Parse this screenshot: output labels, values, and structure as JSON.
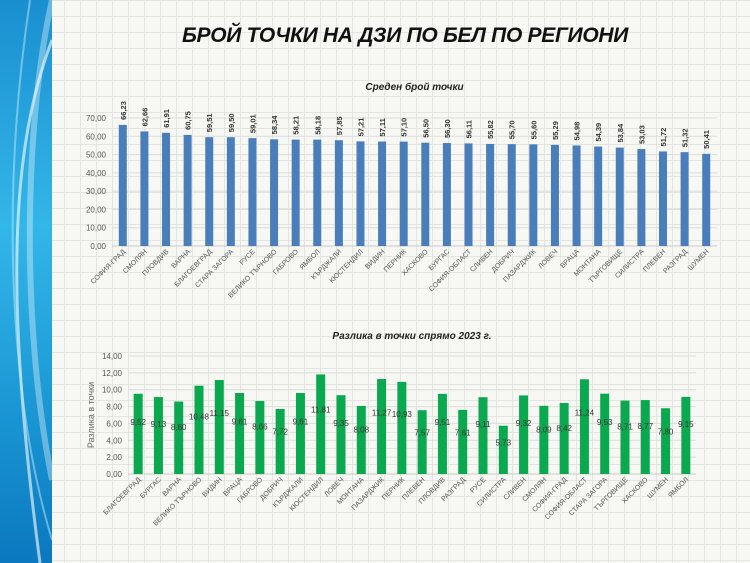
{
  "slide": {
    "title": "БРОЙ ТОЧКИ НА ДЗИ ПО БЕЛ ПО РЕГИОНИ"
  },
  "chart_data": [
    {
      "type": "bar",
      "title": "Среден брой точки",
      "ylabel": "",
      "ylim": [
        0,
        70
      ],
      "yticks": [
        "0,00",
        "10,00",
        "20,00",
        "30,00",
        "40,00",
        "50,00",
        "60,00",
        "70,00"
      ],
      "grid": true,
      "color": "#4a7ebb",
      "categories": [
        "СОФИЯ-ГРАД",
        "СМОЛЯН",
        "ПЛОВДИВ",
        "ВАРНА",
        "БЛАГОЕВГРАД",
        "СТАРА ЗАГОРА",
        "РУСЕ",
        "ВЕЛИКО ТЪРНОВО",
        "ГАБРОВО",
        "ЯМБОЛ",
        "КЪРДЖАЛИ",
        "КЮСТЕНДИЛ",
        "ВИДИН",
        "ПЕРНИК",
        "ХАСКОВО",
        "БУРГАС",
        "СОФИЯ-ОБЛАСТ",
        "СЛИВЕН",
        "ДОБРИЧ",
        "ПАЗАРДЖИК",
        "ЛОВЕЧ",
        "ВРАЦА",
        "МОНТАНА",
        "ТЪРГОВИЩЕ",
        "СИЛИСТРА",
        "ПЛЕВЕН",
        "РАЗГРАД",
        "ШУМЕН"
      ],
      "values": [
        66.23,
        62.66,
        61.91,
        60.75,
        59.51,
        59.5,
        59.01,
        58.34,
        58.21,
        58.18,
        57.85,
        57.21,
        57.11,
        57.1,
        56.5,
        56.3,
        56.11,
        55.82,
        55.7,
        55.6,
        55.29,
        54.98,
        54.39,
        53.84,
        53.03,
        51.72,
        51.32,
        50.41
      ],
      "labels": [
        "66,23",
        "62,66",
        "61,91",
        "60,75",
        "59,51",
        "59,50",
        "59,01",
        "58,34",
        "58,21",
        "58,18",
        "57,85",
        "57,21",
        "57,11",
        "57,10",
        "56,50",
        "56,30",
        "56,11",
        "55,82",
        "55,70",
        "55,60",
        "55,29",
        "54,98",
        "54,39",
        "53,84",
        "53,03",
        "51,72",
        "51,32",
        "50,41"
      ]
    },
    {
      "type": "bar",
      "title": "Разлика в точки спрямо 2023 г.",
      "ylabel": "Разлика в точки",
      "ylim": [
        0,
        14
      ],
      "yticks": [
        "0,00",
        "2,00",
        "4,00",
        "6,00",
        "8,00",
        "10,00",
        "12,00",
        "14,00"
      ],
      "grid": true,
      "color": "#0aa84f",
      "categories": [
        "БЛАГОЕВГРАД",
        "БУРГАС",
        "ВАРНА",
        "ВЕЛИКО ТЪРНОВО",
        "ВИДИН",
        "ВРАЦА",
        "ГАБРОВО",
        "ДОБРИЧ",
        "КЪРДЖАЛИ",
        "КЮСТЕНДИЛ",
        "ЛОВЕЧ",
        "МОНТАНА",
        "ПАЗАРДЖИК",
        "ПЕРНИК",
        "ПЛЕВЕН",
        "ПЛОВДИВ",
        "РАЗГРАД",
        "РУСЕ",
        "СИЛИСТРА",
        "СЛИВЕН",
        "СМОЛЯН",
        "СОФИЯ-ГРАД",
        "СОФИЯ-ОБЛАСТ",
        "СТАРА ЗАГОРА",
        "ТЪРГОВИЩЕ",
        "ХАСКОВО",
        "ШУМЕН",
        "ЯМБОЛ"
      ],
      "values": [
        9.52,
        9.13,
        8.6,
        10.48,
        11.15,
        9.61,
        8.66,
        7.72,
        9.61,
        11.81,
        9.35,
        8.08,
        11.27,
        10.93,
        7.57,
        9.51,
        7.61,
        9.11,
        5.73,
        9.32,
        8.09,
        8.42,
        11.24,
        9.53,
        8.71,
        8.77,
        7.8,
        9.15
      ],
      "labels": [
        "9,52",
        "9,13",
        "8,60",
        "10,48",
        "11,15",
        "9,61",
        "8,66",
        "7,72",
        "9,61",
        "11,81",
        "9,35",
        "8,08",
        "11,27",
        "10,93",
        "7,57",
        "9,51",
        "7,61",
        "9,11",
        "5,73",
        "9,32",
        "8,09",
        "8,42",
        "11,24",
        "9,53",
        "8,71",
        "8,77",
        "7,80",
        "9,15"
      ]
    }
  ]
}
